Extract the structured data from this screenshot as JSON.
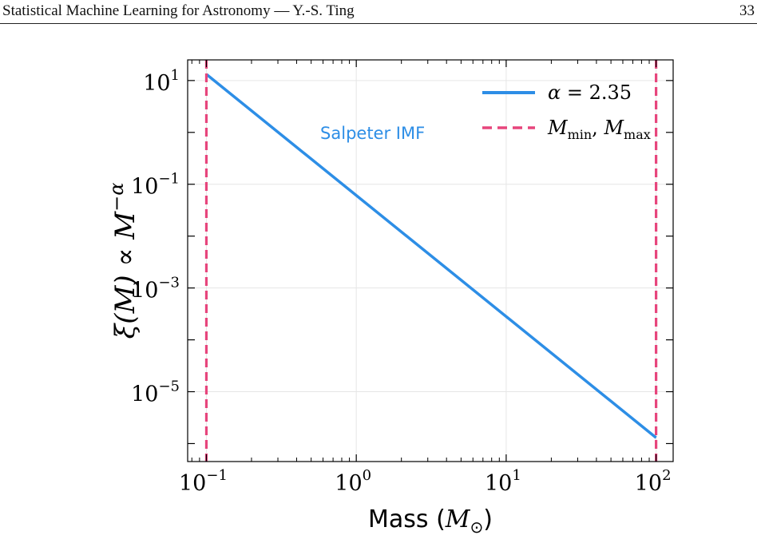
{
  "running_head": {
    "title": "Statistical Machine Learning for Astronomy — Y.-S. Ting",
    "page_number": "33"
  },
  "colors": {
    "power_law": "#2d8ee6",
    "limits": "#e7457c",
    "annotation": "#2d8ee6",
    "grid": "#e6e6e6"
  },
  "chart_data": {
    "type": "line",
    "scale": {
      "x": "log",
      "y": "log"
    },
    "xlim": [
      0.075,
      130
    ],
    "ylim": [
      4.5e-07,
      25
    ],
    "grid": true,
    "legend_position": "top-right",
    "xlabel": {
      "text": "Mass (",
      "math": "M",
      "sub": "⊙",
      "close": ")"
    },
    "ylabel": {
      "text": "ξ(M) ∝ M",
      "sup": "−α"
    },
    "x_ticks": [
      {
        "value": 0.1,
        "base": "10",
        "exp": "−1"
      },
      {
        "value": 1,
        "base": "10",
        "exp": "0"
      },
      {
        "value": 10,
        "base": "10",
        "exp": "1"
      },
      {
        "value": 100,
        "base": "10",
        "exp": "2"
      }
    ],
    "y_ticks": [
      {
        "value": 10,
        "base": "10",
        "exp": "1"
      },
      {
        "value": 0.1,
        "base": "10",
        "exp": "−1"
      },
      {
        "value": 0.001,
        "base": "10",
        "exp": "−3"
      },
      {
        "value": 1e-05,
        "base": "10",
        "exp": "−5"
      }
    ],
    "series": [
      {
        "name": "α = 2.35",
        "style": "solid",
        "x": [
          0.1,
          100
        ],
        "y": [
          13.2,
          1.3e-06
        ]
      }
    ],
    "vlines": [
      {
        "x": 0.1,
        "style": "dashed"
      },
      {
        "x": 100,
        "style": "dashed"
      }
    ],
    "legend": [
      {
        "label_math": "α",
        "label_rest": " = 2.35",
        "style": "solid"
      },
      {
        "label_math": "M",
        "label_sub1": "min",
        "label_sep": ", ",
        "label_math2": "M",
        "label_sub2": "max",
        "style": "dashed"
      }
    ],
    "annotations": [
      {
        "text": "Salpeter IMF",
        "x": 1.2,
        "y": 1.0
      }
    ]
  }
}
